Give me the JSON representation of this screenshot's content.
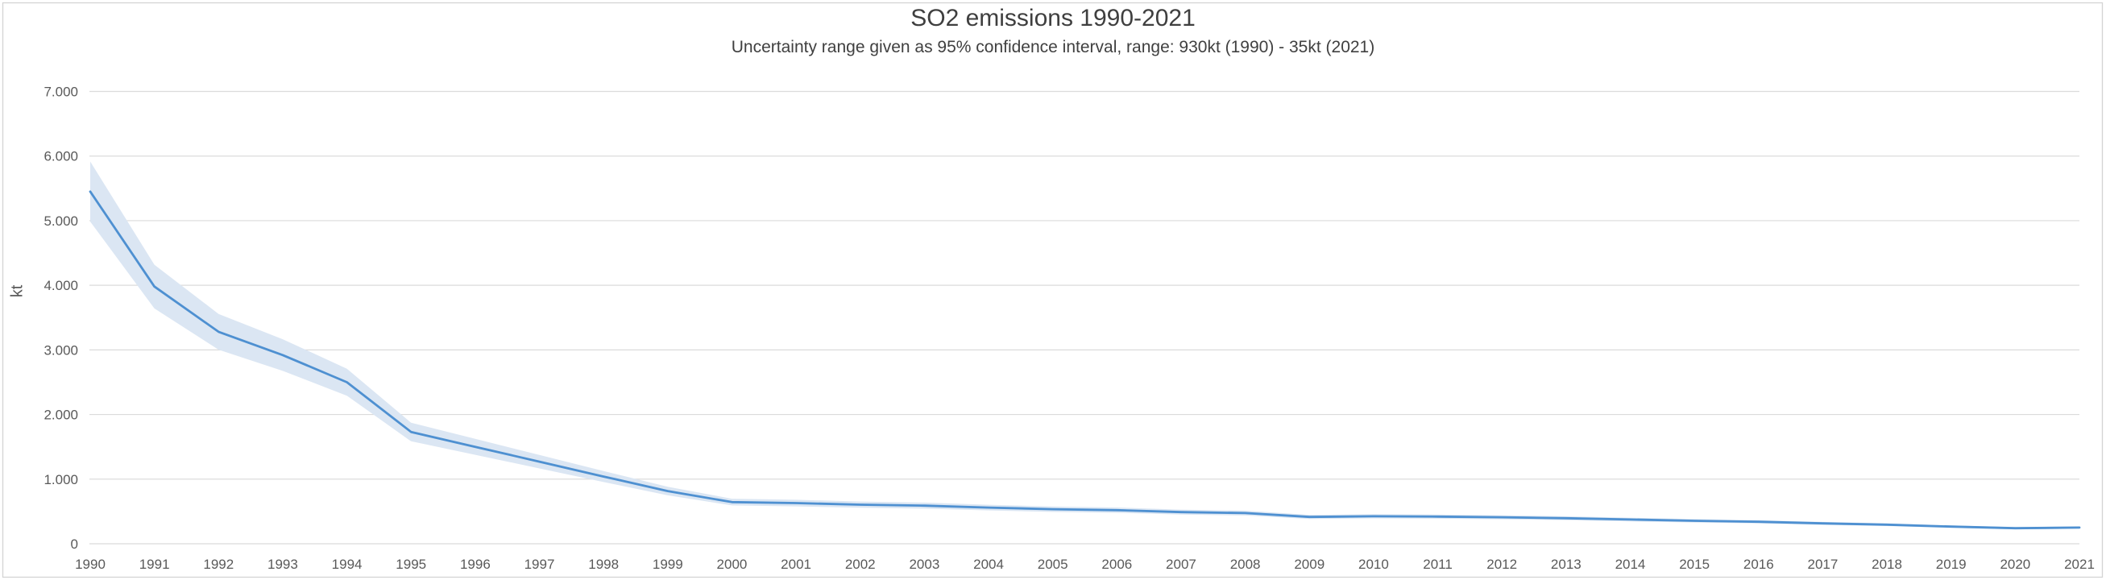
{
  "chart": {
    "title": "SO2 emissions 1990-2021",
    "subtitle": "Uncertainty range given as 95% confidence interval, range: 930kt (1990) - 35kt (2021)",
    "y_axis_title": "kt"
  },
  "colors": {
    "line": "#4e90d1",
    "band": "#dbe6f3",
    "gridline": "#dbdbdb",
    "border": "#d4d4d4",
    "axis_text": "#595959",
    "title_text": "#3f3f3f"
  },
  "chart_data": {
    "type": "line",
    "title": "SO2 emissions 1990-2021",
    "subtitle": "Uncertainty range given as 95% confidence interval, range: 930kt (1990) - 35kt (2021)",
    "xlabel": "",
    "ylabel": "kt",
    "ylim": [
      0,
      7000
    ],
    "grid": "horizontal",
    "legend": "none",
    "y_ticks": [
      0,
      1000,
      2000,
      3000,
      4000,
      5000,
      6000,
      7000
    ],
    "y_tick_labels": [
      "0",
      "1.000",
      "2.000",
      "3.000",
      "4.000",
      "5.000",
      "6.000",
      "7.000"
    ],
    "x": [
      1990,
      1991,
      1992,
      1993,
      1994,
      1995,
      1996,
      1997,
      1998,
      1999,
      2000,
      2001,
      2002,
      2003,
      2004,
      2005,
      2006,
      2007,
      2008,
      2009,
      2010,
      2011,
      2012,
      2013,
      2014,
      2015,
      2016,
      2017,
      2018,
      2019,
      2020,
      2021
    ],
    "x_tick_labels": [
      "1990",
      "1991",
      "1992",
      "1993",
      "1994",
      "1995",
      "1996",
      "1997",
      "1998",
      "1999",
      "2000",
      "2001",
      "2002",
      "2003",
      "2004",
      "2005",
      "2006",
      "2007",
      "2008",
      "2009",
      "2010",
      "2011",
      "2012",
      "2013",
      "2014",
      "2015",
      "2016",
      "2017",
      "2018",
      "2019",
      "2020",
      "2021"
    ],
    "series": [
      {
        "name": "SO2 emissions (kt)",
        "values": [
          5450,
          3980,
          3280,
          2920,
          2500,
          1730,
          1500,
          1270,
          1040,
          815,
          645,
          630,
          605,
          590,
          560,
          535,
          520,
          490,
          475,
          415,
          425,
          420,
          410,
          395,
          375,
          355,
          340,
          315,
          295,
          265,
          240,
          250
        ]
      }
    ],
    "ci_half_width": [
      465,
      338,
      277,
      245,
      209,
      144,
      124,
      104,
      85,
      66,
      52,
      51,
      48,
      47,
      44,
      42,
      41,
      38,
      37,
      32,
      32,
      32,
      31,
      30,
      28,
      26,
      25,
      23,
      21,
      19,
      17,
      18
    ],
    "ci_note": "95% confidence interval band drawn as value ± half-width"
  }
}
